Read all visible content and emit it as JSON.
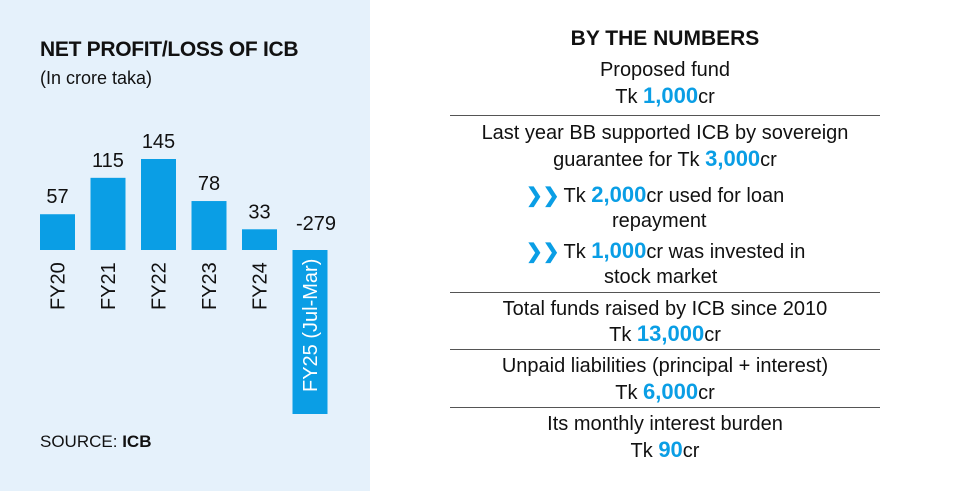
{
  "left": {
    "title": "NET PROFIT/LOSS OF ICB",
    "subtitle": "(In crore taka)",
    "source_label": "SOURCE:",
    "source_value": "ICB"
  },
  "chart_data": {
    "type": "bar",
    "title": "NET PROFIT/LOSS OF ICB",
    "subtitle": "(In crore taka)",
    "categories": [
      "FY20",
      "FY21",
      "FY22",
      "FY23",
      "FY24",
      "FY25 (Jul-Mar)"
    ],
    "values": [
      57,
      115,
      145,
      78,
      33,
      -279
    ],
    "value_labels": [
      "57",
      "115",
      "145",
      "78",
      "33",
      "-279"
    ],
    "bar_color": "#0a9ee5",
    "grid": false
  },
  "right": {
    "title": "BY THE NUMBERS",
    "proposed_label": "Proposed fund",
    "proposed_prefix": "Tk ",
    "proposed_amount": "1,000",
    "proposed_suffix": "cr",
    "guarantee_line1": "Last year BB supported ICB by sovereign",
    "guarantee_prefix": "guarantee for Tk ",
    "guarantee_amount": "3,000",
    "guarantee_suffix": "cr",
    "bullet1_prefix": "Tk ",
    "bullet1_amount": "2,000",
    "bullet1_suffix": "cr used for loan",
    "bullet1_cont": "repayment",
    "bullet2_prefix": "Tk ",
    "bullet2_amount": "1,000",
    "bullet2_suffix": "cr was invested in",
    "bullet2_cont": "stock market",
    "funds_label": "Total funds raised by ICB since 2010",
    "funds_prefix": "Tk ",
    "funds_amount": "13,000",
    "funds_suffix": "cr",
    "liab_label": "Unpaid liabilities (principal + interest)",
    "liab_prefix": "Tk ",
    "liab_amount": "6,000",
    "liab_suffix": "cr",
    "interest_label": "Its monthly interest burden",
    "interest_prefix": "Tk ",
    "interest_amount": "90",
    "interest_suffix": "cr",
    "accent": "#0a9ee5"
  }
}
